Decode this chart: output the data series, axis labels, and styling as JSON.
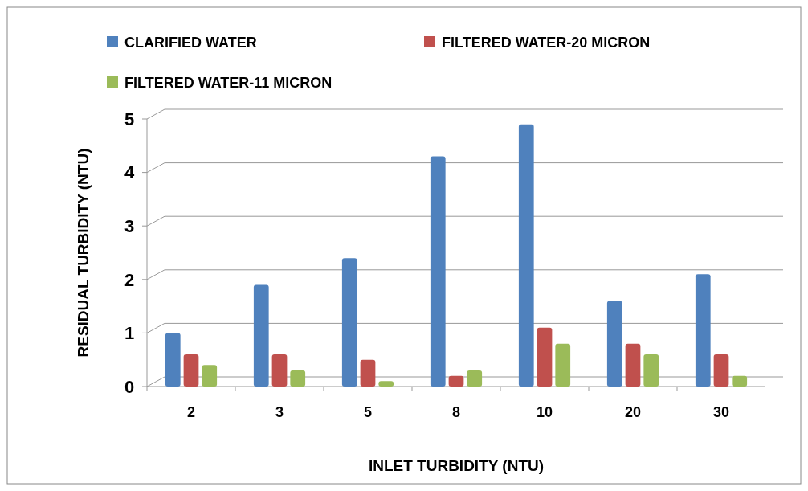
{
  "chart_data": {
    "type": "bar",
    "xlabel": "INLET  TURBIDITY (NTU)",
    "ylabel": "RESIDUAL  TURBIDITY (NTU)",
    "categories": [
      "2",
      "3",
      "5",
      "8",
      "10",
      "20",
      "30"
    ],
    "series": [
      {
        "name": "CLARIFIED WATER",
        "color": "#4f81bd",
        "values": [
          1.0,
          1.9,
          2.4,
          4.3,
          4.9,
          1.6,
          2.1
        ]
      },
      {
        "name": "FILTERED WATER-20 MICRON",
        "color": "#c0504d",
        "values": [
          0.6,
          0.6,
          0.5,
          0.2,
          1.1,
          0.8,
          0.6
        ]
      },
      {
        "name": "FILTERED WATER-11 MICRON",
        "color": "#9bbb59",
        "values": [
          0.4,
          0.3,
          0.1,
          0.3,
          0.8,
          0.6,
          0.2
        ]
      }
    ],
    "ylim": [
      0,
      5
    ],
    "yticks": [
      0,
      1,
      2,
      3,
      4,
      5
    ],
    "grid": "y",
    "legend": "top"
  }
}
